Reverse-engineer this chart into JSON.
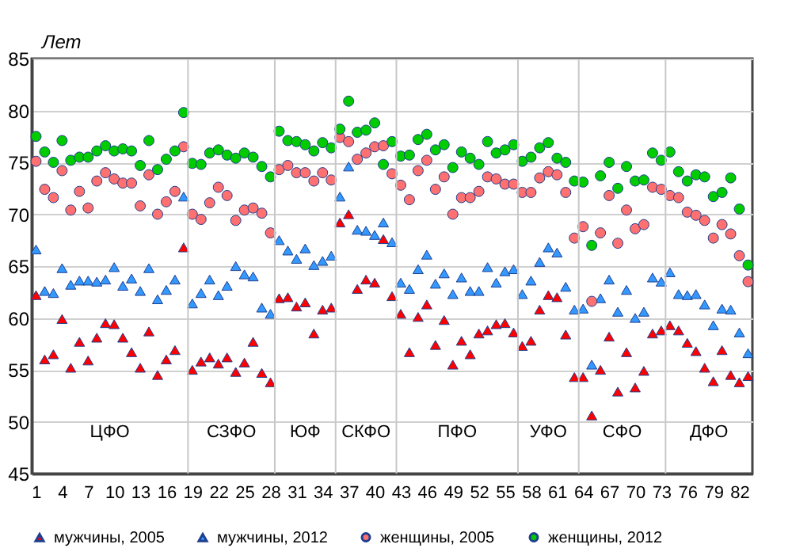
{
  "chart_data": {
    "type": "scatter",
    "ylabel": "Лет",
    "x": [
      1,
      2,
      3,
      4,
      5,
      6,
      7,
      8,
      9,
      10,
      11,
      12,
      13,
      14,
      15,
      16,
      17,
      18,
      19,
      20,
      21,
      22,
      23,
      24,
      25,
      26,
      27,
      28,
      29,
      30,
      31,
      32,
      33,
      34,
      35,
      36,
      37,
      38,
      39,
      40,
      41,
      42,
      43,
      44,
      45,
      46,
      47,
      48,
      49,
      50,
      51,
      52,
      53,
      54,
      55,
      56,
      57,
      58,
      59,
      60,
      61,
      62,
      63,
      64,
      65,
      66,
      67,
      68,
      69,
      70,
      71,
      72,
      73,
      74,
      75,
      76,
      77,
      78,
      79,
      80,
      81,
      82,
      83
    ],
    "xlim": [
      0.5,
      83.5
    ],
    "xticks": [
      1,
      4,
      7,
      10,
      13,
      16,
      19,
      22,
      25,
      28,
      31,
      34,
      37,
      40,
      43,
      46,
      49,
      52,
      55,
      58,
      61,
      64,
      67,
      70,
      73,
      76,
      79,
      82
    ],
    "ylim": [
      45,
      85
    ],
    "yticks": [
      45,
      50,
      55,
      60,
      65,
      70,
      75,
      80,
      85
    ],
    "grid": "y",
    "legend": "bottom",
    "series": [
      {
        "name": "мужчины, 2005",
        "color": "#ff0000",
        "marker": "triangle",
        "values": [
          62.2,
          56.0,
          56.5,
          59.9,
          55.2,
          57.7,
          55.9,
          58.1,
          59.5,
          59.4,
          58.1,
          56.7,
          55.2,
          58.7,
          54.5,
          56.0,
          56.9,
          66.8,
          55.0,
          55.8,
          56.2,
          55.6,
          56.2,
          54.8,
          55.7,
          57.7,
          54.7,
          53.8,
          61.9,
          62.0,
          61.1,
          61.5,
          58.5,
          60.8,
          61.0,
          69.2,
          70.0,
          62.8,
          63.7,
          63.4,
          67.6,
          62.1,
          60.4,
          56.7,
          60.1,
          61.3,
          57.4,
          59.8,
          55.5,
          57.8,
          56.5,
          58.5,
          58.8,
          59.4,
          59.5,
          58.6,
          57.3,
          57.8,
          60.8,
          62.2,
          62.0,
          58.4,
          54.3,
          54.3,
          50.6,
          55.0,
          58.2,
          52.9,
          56.7,
          53.3,
          54.9,
          58.5,
          58.8,
          59.3,
          58.8,
          57.6,
          56.8,
          55.2,
          53.9,
          56.9,
          54.5,
          53.8,
          54.4
        ]
      },
      {
        "name": "мужчины, 2012",
        "color": "#3399ff",
        "marker": "triangle",
        "values": [
          66.6,
          62.6,
          62.4,
          64.8,
          63.2,
          63.6,
          63.6,
          63.5,
          63.7,
          64.9,
          63.1,
          63.8,
          62.6,
          64.8,
          61.8,
          62.7,
          63.7,
          71.7,
          61.4,
          62.4,
          63.7,
          62.2,
          63.1,
          65.0,
          64.2,
          64.0,
          61.0,
          60.4,
          67.5,
          66.5,
          65.7,
          66.7,
          65.1,
          65.5,
          66.0,
          71.7,
          74.6,
          68.5,
          68.4,
          68.0,
          69.2,
          67.3,
          63.4,
          62.8,
          64.7,
          66.1,
          63.3,
          64.3,
          62.3,
          63.9,
          62.6,
          62.6,
          64.9,
          63.4,
          64.5,
          64.7,
          62.3,
          63.6,
          65.4,
          66.8,
          66.3,
          63.0,
          60.8,
          60.9,
          55.5,
          61.9,
          63.7,
          60.6,
          62.7,
          60.0,
          60.6,
          63.9,
          63.5,
          64.4,
          62.3,
          62.2,
          62.3,
          61.3,
          59.3,
          60.9,
          60.8,
          58.6,
          56.6
        ]
      },
      {
        "name": "женщины, 2005",
        "color": "#ff7070",
        "marker": "circle",
        "values": [
          75.1,
          72.4,
          71.6,
          74.2,
          70.4,
          72.2,
          70.6,
          73.2,
          74.0,
          73.4,
          73.0,
          73.0,
          70.8,
          73.8,
          70.0,
          71.2,
          72.2,
          76.5,
          70.0,
          69.5,
          71.1,
          72.6,
          71.8,
          69.4,
          70.4,
          70.6,
          70.1,
          68.2,
          74.3,
          74.7,
          74.0,
          74.0,
          73.2,
          74.0,
          73.3,
          77.4,
          77.0,
          75.3,
          75.9,
          76.5,
          76.6,
          73.9,
          72.8,
          71.4,
          74.2,
          75.2,
          72.4,
          73.6,
          70.0,
          71.6,
          71.6,
          72.2,
          73.6,
          73.4,
          72.9,
          72.9,
          72.1,
          72.1,
          73.5,
          74.1,
          73.8,
          72.1,
          67.7,
          68.8,
          61.6,
          68.2,
          71.8,
          67.2,
          70.4,
          68.6,
          69.0,
          72.6,
          72.4,
          71.8,
          71.6,
          70.2,
          69.9,
          69.4,
          67.7,
          69.0,
          68.1,
          66.0,
          63.5
        ]
      },
      {
        "name": "женщины, 2012",
        "color": "#00cc00",
        "marker": "circle",
        "values": [
          77.5,
          76.0,
          75.0,
          77.1,
          75.2,
          75.5,
          75.5,
          76.1,
          76.6,
          76.1,
          76.3,
          76.1,
          74.7,
          77.1,
          74.3,
          75.3,
          76.1,
          79.8,
          74.9,
          74.8,
          75.9,
          76.2,
          75.7,
          75.4,
          75.9,
          75.5,
          74.6,
          73.6,
          78.0,
          77.1,
          77.0,
          76.7,
          76.1,
          76.9,
          76.4,
          78.2,
          80.9,
          77.9,
          78.1,
          78.8,
          74.8,
          77.0,
          75.6,
          75.7,
          77.2,
          77.7,
          76.2,
          76.7,
          74.5,
          76.0,
          75.4,
          74.8,
          77.0,
          75.9,
          76.2,
          76.7,
          75.1,
          75.5,
          76.4,
          76.9,
          75.4,
          75.0,
          73.2,
          73.1,
          67.0,
          73.7,
          75.0,
          72.5,
          74.6,
          73.2,
          73.3,
          75.9,
          75.2,
          76.0,
          74.1,
          73.2,
          73.8,
          73.6,
          71.7,
          72.1,
          73.5,
          70.5,
          65.1
        ]
      }
    ],
    "ref_lines": [
      {
        "axis": "x",
        "value": 18.5,
        "color": "#c8c8c8"
      },
      {
        "axis": "x",
        "value": 28.5,
        "color": "#c8c8c8"
      },
      {
        "axis": "x",
        "value": 35.5,
        "color": "#c8c8c8"
      },
      {
        "axis": "x",
        "value": 42.5,
        "color": "#c8c8c8"
      },
      {
        "axis": "x",
        "value": 56.5,
        "color": "#c8c8c8"
      },
      {
        "axis": "x",
        "value": 63.5,
        "color": "#c8c8c8"
      },
      {
        "axis": "x",
        "value": 73.5,
        "color": "#c8c8c8"
      }
    ],
    "annotations": [
      "ЦФО",
      "СЗФО",
      "ЮФ",
      "СКФО",
      "ПФО",
      "УФО",
      "СФО",
      "ДФО"
    ]
  }
}
